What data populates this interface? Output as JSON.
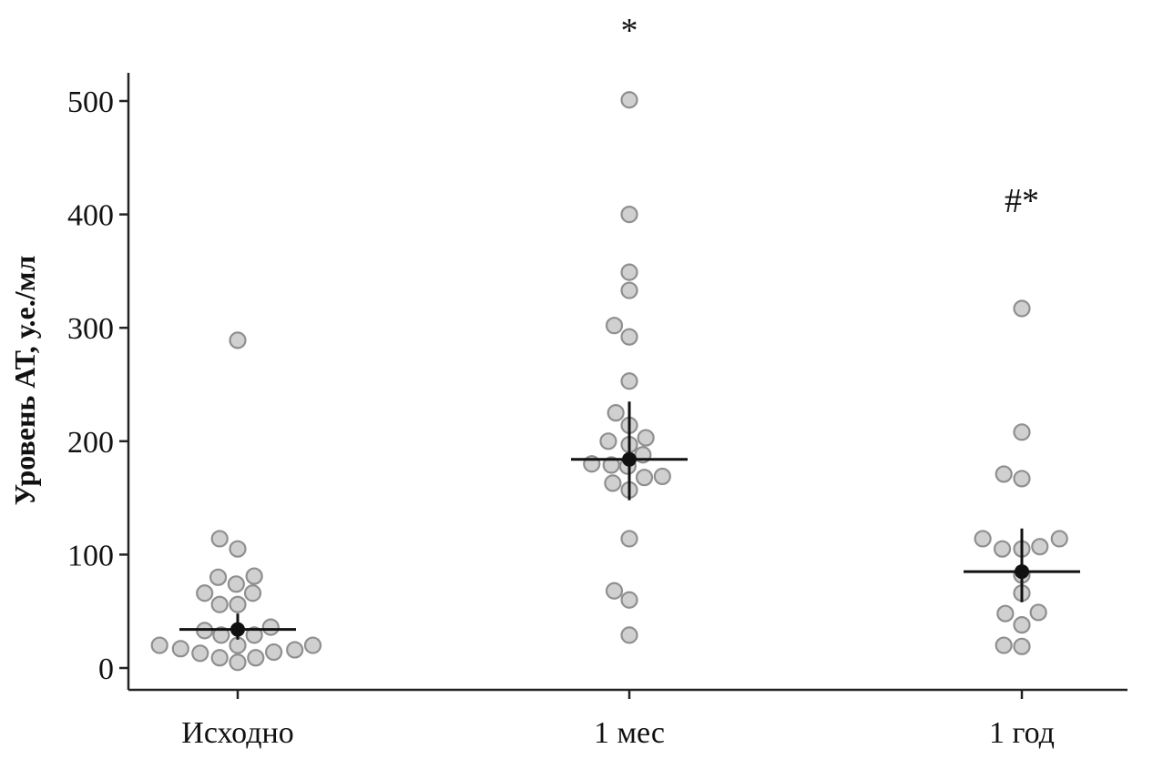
{
  "chart_data": {
    "type": "scatter",
    "title": "",
    "xlabel": "",
    "ylabel": "Уровень АТ, у.е./мл",
    "ylim": [
      -20,
      525
    ],
    "yticks": [
      0,
      100,
      200,
      300,
      400,
      500
    ],
    "grid": false,
    "categories": [
      "Исходно",
      "1 мес",
      "1 год"
    ],
    "groups": [
      {
        "category": "Исходно",
        "median": 34,
        "error": [
          25,
          48
        ],
        "annotation": "",
        "points": [
          {
            "jitter": 0,
            "y": 289
          },
          {
            "jitter": -0.6,
            "y": 114
          },
          {
            "jitter": 0.0,
            "y": 105
          },
          {
            "jitter": -0.65,
            "y": 80
          },
          {
            "jitter": -0.05,
            "y": 74
          },
          {
            "jitter": 0.55,
            "y": 81
          },
          {
            "jitter": -1.1,
            "y": 66
          },
          {
            "jitter": 0.5,
            "y": 66
          },
          {
            "jitter": -0.6,
            "y": 56
          },
          {
            "jitter": 0.0,
            "y": 56
          },
          {
            "jitter": 1.1,
            "y": 36
          },
          {
            "jitter": -1.1,
            "y": 33
          },
          {
            "jitter": -0.55,
            "y": 29
          },
          {
            "jitter": 0.55,
            "y": 29
          },
          {
            "jitter": -2.6,
            "y": 20
          },
          {
            "jitter": -1.9,
            "y": 17
          },
          {
            "jitter": 0.0,
            "y": 20
          },
          {
            "jitter": 2.5,
            "y": 20
          },
          {
            "jitter": -1.25,
            "y": 13
          },
          {
            "jitter": 1.2,
            "y": 14
          },
          {
            "jitter": 1.9,
            "y": 16
          },
          {
            "jitter": -0.6,
            "y": 9
          },
          {
            "jitter": 0.6,
            "y": 9
          },
          {
            "jitter": 0.0,
            "y": 5
          }
        ]
      },
      {
        "category": "1 мес",
        "median": 184,
        "error": [
          148,
          235
        ],
        "annotation": "*",
        "points": [
          {
            "jitter": 0,
            "y": 501
          },
          {
            "jitter": 0,
            "y": 400
          },
          {
            "jitter": 0,
            "y": 349
          },
          {
            "jitter": 0,
            "y": 333
          },
          {
            "jitter": -0.5,
            "y": 302
          },
          {
            "jitter": 0.0,
            "y": 292
          },
          {
            "jitter": 0.0,
            "y": 253
          },
          {
            "jitter": -0.45,
            "y": 225
          },
          {
            "jitter": 0.0,
            "y": 214
          },
          {
            "jitter": 0.55,
            "y": 203
          },
          {
            "jitter": -0.7,
            "y": 200
          },
          {
            "jitter": 0.0,
            "y": 197
          },
          {
            "jitter": 0.45,
            "y": 188
          },
          {
            "jitter": -1.25,
            "y": 180
          },
          {
            "jitter": -0.6,
            "y": 179
          },
          {
            "jitter": -0.05,
            "y": 178
          },
          {
            "jitter": 0.5,
            "y": 168
          },
          {
            "jitter": 1.1,
            "y": 169
          },
          {
            "jitter": -0.55,
            "y": 163
          },
          {
            "jitter": 0.0,
            "y": 157
          },
          {
            "jitter": 0.0,
            "y": 114
          },
          {
            "jitter": -0.5,
            "y": 68
          },
          {
            "jitter": 0.0,
            "y": 60
          },
          {
            "jitter": 0.0,
            "y": 29
          }
        ]
      },
      {
        "category": "1 год",
        "median": 85,
        "error": [
          58,
          123
        ],
        "annotation": "#*",
        "points": [
          {
            "jitter": 0,
            "y": 317
          },
          {
            "jitter": 0,
            "y": 208
          },
          {
            "jitter": -0.6,
            "y": 171
          },
          {
            "jitter": 0.0,
            "y": 167
          },
          {
            "jitter": -1.3,
            "y": 114
          },
          {
            "jitter": -0.65,
            "y": 105
          },
          {
            "jitter": 0.0,
            "y": 105
          },
          {
            "jitter": 0.6,
            "y": 107
          },
          {
            "jitter": 1.25,
            "y": 114
          },
          {
            "jitter": 0.0,
            "y": 82
          },
          {
            "jitter": 0.0,
            "y": 66
          },
          {
            "jitter": -0.55,
            "y": 48
          },
          {
            "jitter": 0.55,
            "y": 49
          },
          {
            "jitter": 0.0,
            "y": 38
          },
          {
            "jitter": -0.6,
            "y": 20
          },
          {
            "jitter": 0.0,
            "y": 19
          }
        ]
      }
    ]
  }
}
